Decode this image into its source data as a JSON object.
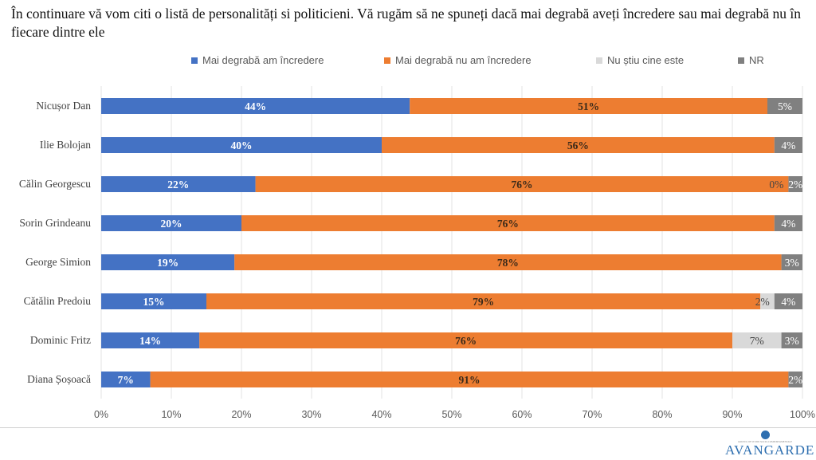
{
  "chart_data": {
    "type": "bar",
    "orientation": "horizontal",
    "stacked": true,
    "title": "În continuare vă vom citi o listă de personalități si politicieni. Vă rugăm să ne spuneți dacă mai degrabă aveți încredere sau mai degrabă nu în fiecare dintre ele",
    "categories": [
      "Nicușor Dan",
      "Ilie Bolojan",
      "Călin Georgescu",
      "Sorin Grindeanu",
      "George Simion",
      "Cătălin Predoiu",
      "Dominic Fritz",
      "Diana Șoșoacă"
    ],
    "series": [
      {
        "name": "Mai degrabă am încredere",
        "color": "#4472C4",
        "values": [
          44,
          40,
          22,
          20,
          19,
          15,
          14,
          7
        ],
        "labels": [
          "44%",
          "40%",
          "22%",
          "20%",
          "19%",
          "15%",
          "14%",
          "7%"
        ]
      },
      {
        "name": "Mai degrabă nu am încredere",
        "color": "#ED7D31",
        "values": [
          51,
          56,
          76,
          76,
          78,
          79,
          76,
          91
        ],
        "labels": [
          "51%",
          "56%",
          "76%",
          "76%",
          "78%",
          "79%",
          "76%",
          "91%"
        ]
      },
      {
        "name": "Nu știu cine este",
        "color": "#D9D9D9",
        "values": [
          0,
          0,
          0,
          0,
          0,
          2,
          7,
          0
        ],
        "labels": [
          null,
          null,
          "0%",
          null,
          null,
          "2%",
          "7%",
          null
        ]
      },
      {
        "name": "NR",
        "color": "#808080",
        "values": [
          5,
          4,
          2,
          4,
          3,
          4,
          3,
          2
        ],
        "labels": [
          "5%",
          "4%",
          "2%",
          "4%",
          "3%",
          "4%",
          "3%",
          "2%"
        ]
      }
    ],
    "xlim": [
      0,
      100
    ],
    "xticks": [
      "0%",
      "10%",
      "20%",
      "30%",
      "40%",
      "50%",
      "60%",
      "70%",
      "80%",
      "90%",
      "100%"
    ],
    "grid": true,
    "legend": "top"
  },
  "logo": {
    "name": "AVANGARDE",
    "subtitle": "GRUPUL DE STUDII SOCIO-COMPORTAMENTALE"
  }
}
